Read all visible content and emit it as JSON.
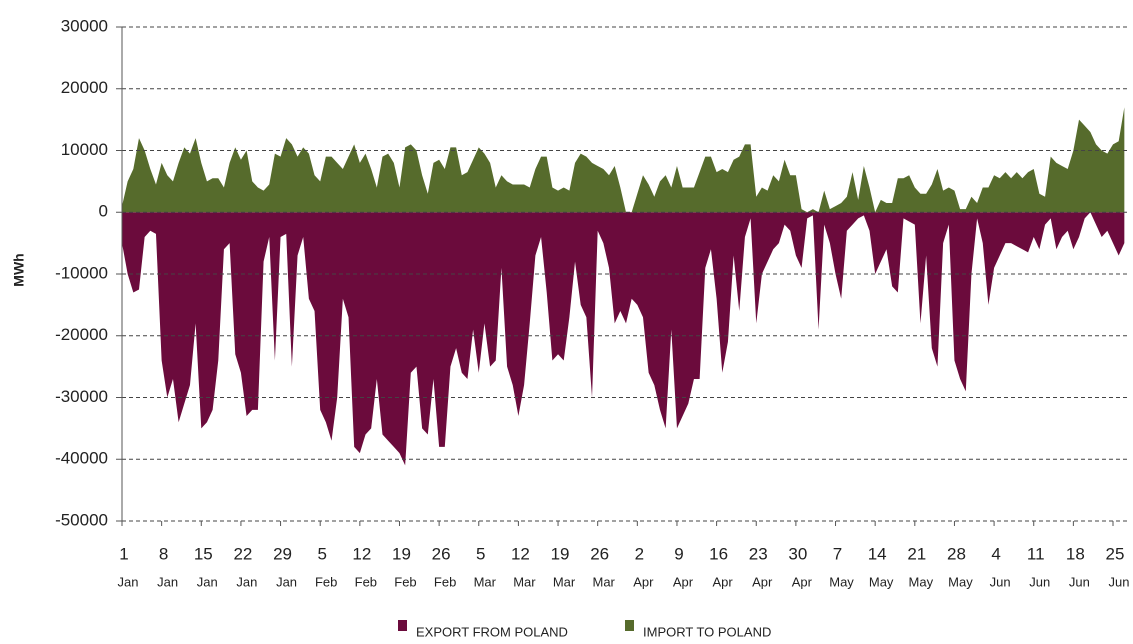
{
  "chart_data": {
    "type": "area",
    "y_label": "MWh",
    "ylim": [
      -50000,
      30000
    ],
    "yticks": [
      -50000,
      -40000,
      -30000,
      -20000,
      -10000,
      0,
      10000,
      20000,
      30000
    ],
    "grid": true,
    "legend": "bottom",
    "categories": [
      [
        "1",
        "Jan"
      ],
      null,
      null,
      null,
      null,
      null,
      null,
      [
        "8",
        "Jan"
      ],
      null,
      null,
      null,
      null,
      null,
      null,
      [
        "15",
        "Jan"
      ],
      null,
      null,
      null,
      null,
      null,
      null,
      [
        "22",
        "Jan"
      ],
      null,
      null,
      null,
      null,
      null,
      null,
      [
        "29",
        "Jan"
      ],
      null,
      null,
      null,
      null,
      null,
      null,
      [
        "5",
        "Feb"
      ],
      null,
      null,
      null,
      null,
      null,
      null,
      [
        "12",
        "Feb"
      ],
      null,
      null,
      null,
      null,
      null,
      null,
      [
        "19",
        "Feb"
      ],
      null,
      null,
      null,
      null,
      null,
      null,
      [
        "26",
        "Feb"
      ],
      null,
      null,
      null,
      null,
      null,
      null,
      [
        "5",
        "Mar"
      ],
      null,
      null,
      null,
      null,
      null,
      null,
      [
        "12",
        "Mar"
      ],
      null,
      null,
      null,
      null,
      null,
      null,
      [
        "19",
        "Mar"
      ],
      null,
      null,
      null,
      null,
      null,
      null,
      [
        "26",
        "Mar"
      ],
      null,
      null,
      null,
      null,
      null,
      null,
      [
        "2",
        "Apr"
      ],
      null,
      null,
      null,
      null,
      null,
      null,
      [
        "9",
        "Apr"
      ],
      null,
      null,
      null,
      null,
      null,
      null,
      [
        "16",
        "Apr"
      ],
      null,
      null,
      null,
      null,
      null,
      null,
      [
        "23",
        "Apr"
      ],
      null,
      null,
      null,
      null,
      null,
      null,
      [
        "30",
        "Apr"
      ],
      null,
      null,
      null,
      null,
      null,
      null,
      [
        "7",
        "May"
      ],
      null,
      null,
      null,
      null,
      null,
      null,
      [
        "14",
        "May"
      ],
      null,
      null,
      null,
      null,
      null,
      null,
      [
        "21",
        "May"
      ],
      null,
      null,
      null,
      null,
      null,
      null,
      [
        "28",
        "May"
      ],
      null,
      null,
      null,
      null,
      null,
      null,
      [
        "4",
        "Jun"
      ],
      null,
      null,
      null,
      null,
      null,
      null,
      [
        "11",
        "Jun"
      ],
      null,
      null,
      null,
      null,
      null,
      null,
      [
        "18",
        "Jun"
      ],
      null,
      null,
      null,
      null,
      null,
      null,
      [
        "25",
        "Jun"
      ],
      null,
      null
    ],
    "series": [
      {
        "name": "EXPORT FROM POLAND",
        "color": "#6b0b3c",
        "values": [
          -5000,
          -10000,
          -13000,
          -12500,
          -4000,
          -3000,
          -3500,
          -24000,
          -30000,
          -27000,
          -34000,
          -31000,
          -28000,
          -18000,
          -35000,
          -34000,
          -32000,
          -24000,
          -6000,
          -5000,
          -23000,
          -26000,
          -33000,
          -32000,
          -32000,
          -8000,
          -4000,
          -24000,
          -4000,
          -3500,
          -25000,
          -7000,
          -4000,
          -14000,
          -16000,
          -32000,
          -34000,
          -37000,
          -30000,
          -14000,
          -17000,
          -38000,
          -39000,
          -36000,
          -35000,
          -27000,
          -36000,
          -37000,
          -38000,
          -39000,
          -41000,
          -26000,
          -25000,
          -35000,
          -36000,
          -27000,
          -38000,
          -38000,
          -25000,
          -22000,
          -26000,
          -27000,
          -19000,
          -26000,
          -18000,
          -25000,
          -24000,
          -9000,
          -25000,
          -28000,
          -33000,
          -28000,
          -18000,
          -7000,
          -4000,
          -13000,
          -24000,
          -23000,
          -24000,
          -17000,
          -8000,
          -15000,
          -17000,
          -30000,
          -3000,
          -5000,
          -9000,
          -18000,
          -16000,
          -18000,
          -14000,
          -15000,
          -17000,
          -26000,
          -28000,
          -32000,
          -35000,
          -19000,
          -35000,
          -33000,
          -31000,
          -27000,
          -27000,
          -9000,
          -6000,
          -14000,
          -26000,
          -21000,
          -7000,
          -16000,
          -4000,
          -1000,
          -18000,
          -10000,
          -8000,
          -6000,
          -5000,
          -2000,
          -3000,
          -7000,
          -9000,
          -1000,
          -500,
          -19000,
          -2000,
          -5000,
          -10000,
          -14000,
          -3000,
          -2000,
          -1000,
          -500,
          -3000,
          -10000,
          -8000,
          -6000,
          -12000,
          -13000,
          -1000,
          -1500,
          -2000,
          -18000,
          -7000,
          -22000,
          -25000,
          -5000,
          -2000,
          -24000,
          -27000,
          -29000,
          -10000,
          -1000,
          -5000,
          -15000,
          -9000,
          -7000,
          -5000,
          -5000,
          -5500,
          -6000,
          -6500,
          -4000,
          -6000,
          -2000,
          -1000,
          -6000,
          -4000,
          -3000,
          -6000,
          -4000,
          -1000,
          0,
          -2000,
          -4000,
          -3000,
          -5000,
          -7000,
          -5000
        ]
      },
      {
        "name": "IMPORT TO POLAND",
        "color": "#566b2c",
        "values": [
          1000,
          5000,
          7000,
          12000,
          10000,
          7000,
          4500,
          8000,
          6000,
          5000,
          8000,
          10500,
          9500,
          12000,
          8000,
          5000,
          5500,
          5500,
          4000,
          8000,
          10500,
          8500,
          10000,
          5000,
          4000,
          3500,
          4500,
          9500,
          9000,
          12000,
          11000,
          9000,
          10500,
          9500,
          6000,
          5000,
          9000,
          9000,
          8000,
          7000,
          9000,
          11000,
          8000,
          9500,
          7000,
          4000,
          9000,
          9500,
          8000,
          4000,
          10500,
          11000,
          10000,
          6000,
          3000,
          8000,
          8500,
          7000,
          10500,
          10500,
          6000,
          6500,
          8500,
          10500,
          9500,
          8000,
          4000,
          6000,
          5000,
          4500,
          4500,
          4500,
          4000,
          7000,
          9000,
          9000,
          4000,
          3500,
          4000,
          3500,
          8000,
          9500,
          9000,
          8000,
          7500,
          7000,
          6000,
          7500,
          4000,
          0,
          0,
          3000,
          6000,
          4500,
          2500,
          5000,
          6000,
          4000,
          7500,
          4000,
          4000,
          4000,
          6500,
          9000,
          9000,
          6500,
          7000,
          6500,
          8500,
          9000,
          11000,
          11000,
          2500,
          4000,
          3500,
          6000,
          5000,
          8500,
          6000,
          6000,
          500,
          0,
          500,
          0,
          3500,
          500,
          1000,
          1500,
          2500,
          6500,
          2000,
          7500,
          4000,
          0,
          2000,
          1500,
          1500,
          5500,
          5500,
          6000,
          4000,
          3000,
          3000,
          4500,
          7000,
          3500,
          4000,
          3500,
          500,
          500,
          2500,
          1500,
          4000,
          4000,
          6000,
          5500,
          6500,
          5500,
          6500,
          5500,
          6500,
          7000,
          3000,
          2500,
          9000,
          8000,
          7500,
          7000,
          10000,
          15000,
          14000,
          13000,
          11000,
          10000,
          9500,
          11000,
          11500,
          17000
        ]
      }
    ]
  }
}
